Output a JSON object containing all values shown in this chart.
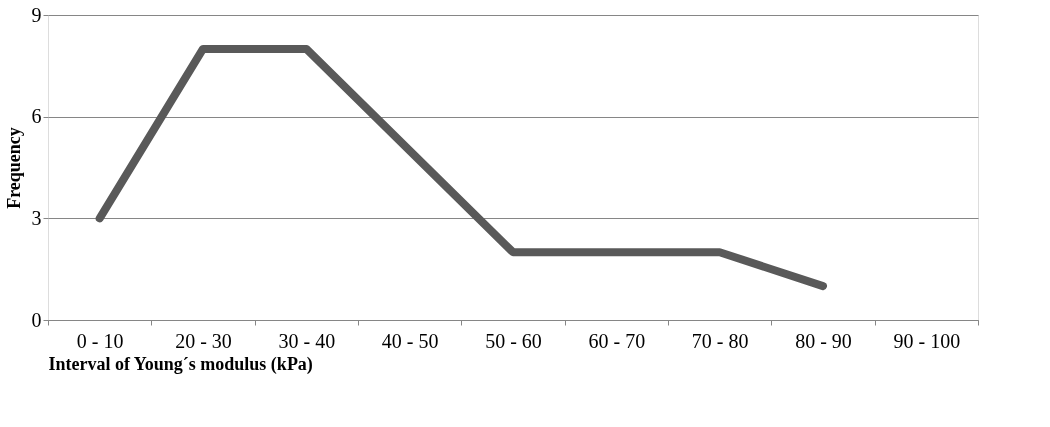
{
  "chart_data": {
    "type": "line",
    "xlabel": "Interval of Young´s modulus (kPa)",
    "ylabel": "Frequency",
    "categories": [
      "0 - 10",
      "20 - 30",
      "30 - 40",
      "40 - 50",
      "50 - 60",
      "60 - 70",
      "70 - 80",
      "80 - 90",
      "90 - 100"
    ],
    "series": [
      {
        "color": "#595959",
        "values": [
          3,
          8,
          8,
          5,
          2,
          2,
          2,
          1,
          null
        ]
      }
    ],
    "ylim": [
      0,
      9
    ],
    "yticks": [
      0,
      3,
      6,
      9
    ],
    "grid": "y",
    "legend": false,
    "line_style": "solid"
  }
}
